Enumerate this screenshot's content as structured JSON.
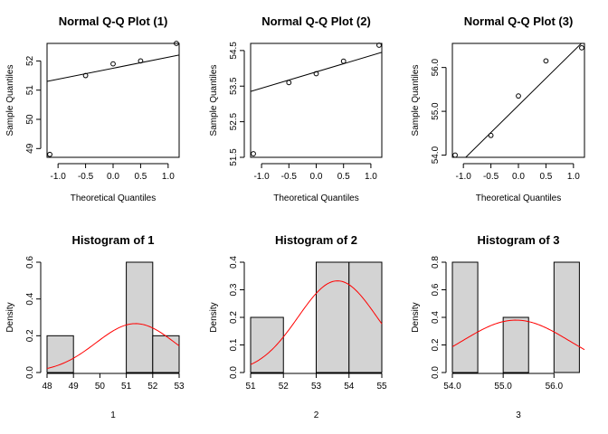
{
  "chart_data": [
    {
      "type": "scatter",
      "title": "Normal Q-Q Plot (1)",
      "xlabel": "Theoretical Quantiles",
      "ylabel": "Sample Quantiles",
      "xlim": [
        -1.2,
        1.2
      ],
      "ylim": [
        48.7,
        52.6
      ],
      "xticks": [
        -1.0,
        -0.5,
        0.0,
        0.5,
        1.0
      ],
      "xtick_labels": [
        "-1.0",
        "-0.5",
        "0.0",
        "0.5",
        "1.0"
      ],
      "yticks": [
        49,
        50,
        51,
        52
      ],
      "ytick_labels": [
        "49",
        "50",
        "51",
        "52"
      ],
      "points": [
        [
          -1.15,
          48.8
        ],
        [
          -0.5,
          51.5
        ],
        [
          0.0,
          51.9
        ],
        [
          0.5,
          52.0
        ],
        [
          1.15,
          52.6
        ]
      ],
      "reference_line": [
        [
          -1.2,
          51.3
        ],
        [
          1.2,
          52.2
        ]
      ]
    },
    {
      "type": "scatter",
      "title": "Normal Q-Q Plot (2)",
      "xlabel": "Theoretical Quantiles",
      "ylabel": "Sample Quantiles",
      "xlim": [
        -1.2,
        1.2
      ],
      "ylim": [
        51.5,
        54.7
      ],
      "xticks": [
        -1.0,
        -0.5,
        0.0,
        0.5,
        1.0
      ],
      "xtick_labels": [
        "-1.0",
        "-0.5",
        "0.0",
        "0.5",
        "1.0"
      ],
      "yticks": [
        51.5,
        52.5,
        53.5,
        54.5
      ],
      "ytick_labels": [
        "51.5",
        "52.5",
        "53.5",
        "54.5"
      ],
      "points": [
        [
          -1.15,
          51.6
        ],
        [
          -0.5,
          53.6
        ],
        [
          0.0,
          53.85
        ],
        [
          0.5,
          54.2
        ],
        [
          1.15,
          54.65
        ]
      ],
      "reference_line": [
        [
          -1.2,
          53.35
        ],
        [
          1.2,
          54.45
        ]
      ]
    },
    {
      "type": "scatter",
      "title": "Normal Q-Q Plot (3)",
      "xlabel": "Theoretical Quantiles",
      "ylabel": "Sample Quantiles",
      "xlim": [
        -1.2,
        1.2
      ],
      "ylim": [
        53.95,
        56.55
      ],
      "xticks": [
        -1.0,
        -0.5,
        0.0,
        0.5,
        1.0
      ],
      "xtick_labels": [
        "-1.0",
        "-0.5",
        "0.0",
        "0.5",
        "1.0"
      ],
      "yticks": [
        54.0,
        55.0,
        56.0
      ],
      "ytick_labels": [
        "54.0",
        "55.0",
        "56.0"
      ],
      "points": [
        [
          -1.15,
          54.0
        ],
        [
          -0.5,
          54.45
        ],
        [
          0.0,
          55.35
        ],
        [
          0.5,
          56.15
        ],
        [
          1.15,
          56.45
        ]
      ],
      "reference_line": [
        [
          -1.2,
          53.65
        ],
        [
          1.2,
          56.62
        ]
      ]
    },
    {
      "type": "bar",
      "title": "Histogram of 1",
      "xlabel": "1",
      "ylabel": "Density",
      "xlim": [
        48,
        53
      ],
      "ylim": [
        0,
        0.6
      ],
      "xticks": [
        48,
        49,
        50,
        51,
        52,
        53
      ],
      "xtick_labels": [
        "48",
        "49",
        "50",
        "51",
        "52",
        "53"
      ],
      "yticks": [
        0.0,
        0.2,
        0.4,
        0.6
      ],
      "ytick_labels": [
        "0.0",
        "0.2",
        "0.4",
        "0.6"
      ],
      "bins": [
        [
          48,
          49,
          0.2
        ],
        [
          49,
          50,
          0.0
        ],
        [
          50,
          51,
          0.0
        ],
        [
          51,
          52,
          0.6
        ],
        [
          52,
          53,
          0.2
        ]
      ],
      "curve": {
        "color": "#ff0000",
        "mean": 51.35,
        "sd": 1.5
      }
    },
    {
      "type": "bar",
      "title": "Histogram of 2",
      "xlabel": "2",
      "ylabel": "Density",
      "xlim": [
        51,
        55
      ],
      "ylim": [
        0,
        0.4
      ],
      "xticks": [
        51,
        52,
        53,
        54,
        55
      ],
      "xtick_labels": [
        "51",
        "52",
        "53",
        "54",
        "55"
      ],
      "yticks": [
        0.0,
        0.1,
        0.2,
        0.3,
        0.4
      ],
      "ytick_labels": [
        "0.0",
        "0.1",
        "0.2",
        "0.3",
        "0.4"
      ],
      "bins": [
        [
          51,
          52,
          0.2
        ],
        [
          52,
          53,
          0.0
        ],
        [
          53,
          54,
          0.4
        ],
        [
          54,
          55,
          0.4
        ]
      ],
      "curve": {
        "color": "#ff0000",
        "mean": 53.65,
        "sd": 1.2
      }
    },
    {
      "type": "bar",
      "title": "Histogram of 3",
      "xlabel": "3",
      "ylabel": "Density",
      "xlim": [
        54,
        56.6
      ],
      "ylim": [
        0,
        0.8
      ],
      "xticks": [
        54.0,
        55.0,
        56.0
      ],
      "xtick_labels": [
        "54.0",
        "55.0",
        "56.0"
      ],
      "yticks": [
        0.0,
        0.2,
        0.4,
        0.6,
        0.8
      ],
      "ytick_labels": [
        "0.0",
        "0.2",
        "0.4",
        "0.6",
        "0.8"
      ],
      "bins": [
        [
          54.0,
          54.5,
          0.8
        ],
        [
          54.5,
          55.0,
          0.0
        ],
        [
          55.0,
          55.5,
          0.4
        ],
        [
          55.5,
          56.0,
          0.0
        ],
        [
          56.0,
          56.5,
          0.8
        ]
      ],
      "curve": {
        "color": "#ff0000",
        "mean": 55.25,
        "sd": 1.05
      }
    }
  ]
}
